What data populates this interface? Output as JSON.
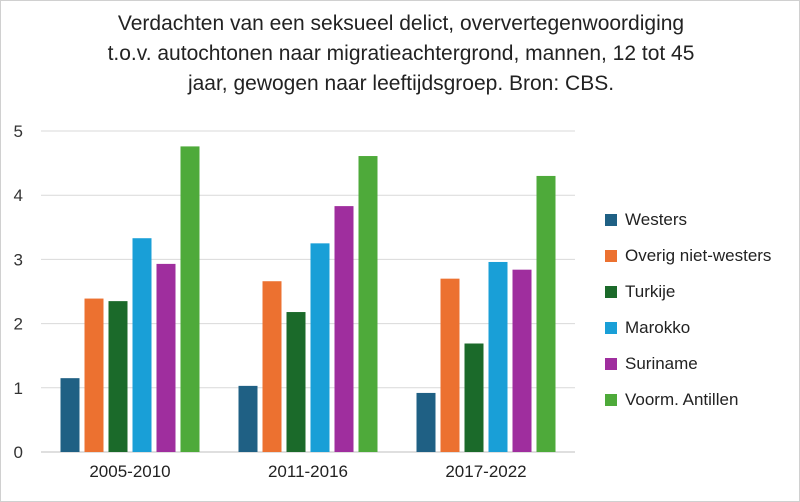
{
  "chart_data": {
    "type": "bar",
    "title_lines": [
      "Verdachten van een seksueel delict, oververtegenwoordiging",
      "t.o.v. autochtonen naar migratieachtergrond, mannen, 12 tot 45",
      "jaar, gewogen naar leeftijdsgroep. Bron: CBS."
    ],
    "categories": [
      "2005-2010",
      "2011-2016",
      "2017-2022"
    ],
    "series": [
      {
        "name": "Westers",
        "color": "#1f6084",
        "values": [
          1.15,
          1.03,
          0.92
        ]
      },
      {
        "name": "Overig niet-westers",
        "color": "#ec7130",
        "values": [
          2.39,
          2.66,
          2.7
        ]
      },
      {
        "name": "Turkije",
        "color": "#1b6a2a",
        "values": [
          2.35,
          2.18,
          1.69
        ]
      },
      {
        "name": "Marokko",
        "color": "#199fd7",
        "values": [
          3.33,
          3.25,
          2.96
        ]
      },
      {
        "name": "Suriname",
        "color": "#9f2e9e",
        "values": [
          2.93,
          3.83,
          2.84
        ]
      },
      {
        "name": "Voorm. Antillen",
        "color": "#4eaa3a",
        "values": [
          4.76,
          4.61,
          4.3
        ]
      }
    ],
    "ylim": [
      0,
      5
    ],
    "yticks": [
      "0",
      "1",
      "2",
      "3",
      "4",
      "5"
    ],
    "grid": true,
    "legend_position": "right"
  }
}
